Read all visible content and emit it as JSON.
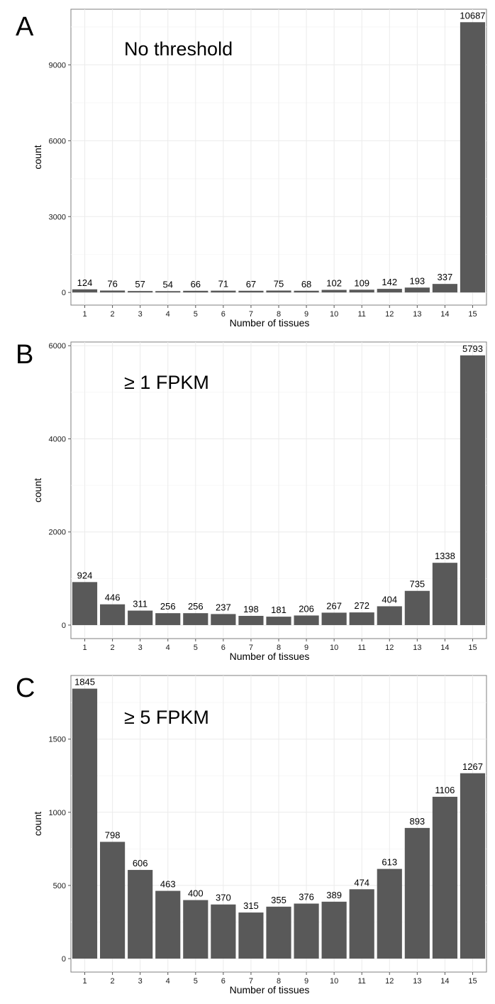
{
  "chart_data": [
    {
      "type": "bar",
      "panel_label": "A",
      "annotation": "No threshold",
      "categories": [
        "1",
        "2",
        "3",
        "4",
        "5",
        "6",
        "7",
        "8",
        "9",
        "10",
        "11",
        "12",
        "13",
        "14",
        "15"
      ],
      "values": [
        124,
        76,
        57,
        54,
        66,
        71,
        67,
        75,
        68,
        102,
        109,
        142,
        193,
        337,
        10687
      ],
      "xlabel": "Number of tissues",
      "ylabel": "count",
      "ylim": [
        -500,
        11200
      ],
      "yticks": [
        0,
        3000,
        6000,
        9000
      ],
      "grid": true
    },
    {
      "type": "bar",
      "panel_label": "B",
      "annotation": "≥ 1 FPKM",
      "categories": [
        "1",
        "2",
        "3",
        "4",
        "5",
        "6",
        "7",
        "8",
        "9",
        "10",
        "11",
        "12",
        "13",
        "14",
        "15"
      ],
      "values": [
        924,
        446,
        311,
        256,
        256,
        237,
        198,
        181,
        206,
        267,
        272,
        404,
        735,
        1338,
        5793
      ],
      "xlabel": "Number of tissues",
      "ylabel": "count",
      "ylim": [
        -290,
        6080
      ],
      "yticks": [
        0,
        2000,
        4000,
        6000
      ],
      "grid": true
    },
    {
      "type": "bar",
      "panel_label": "C",
      "annotation": "≥ 5 FPKM",
      "categories": [
        "1",
        "2",
        "3",
        "4",
        "5",
        "6",
        "7",
        "8",
        "9",
        "10",
        "11",
        "12",
        "13",
        "14",
        "15"
      ],
      "values": [
        1845,
        798,
        606,
        463,
        400,
        370,
        315,
        355,
        376,
        389,
        474,
        613,
        893,
        1106,
        1267
      ],
      "xlabel": "Number of tissues",
      "ylabel": "count",
      "ylim": [
        -92,
        1935
      ],
      "yticks": [
        0,
        500,
        1000,
        1500
      ],
      "grid": true
    }
  ]
}
